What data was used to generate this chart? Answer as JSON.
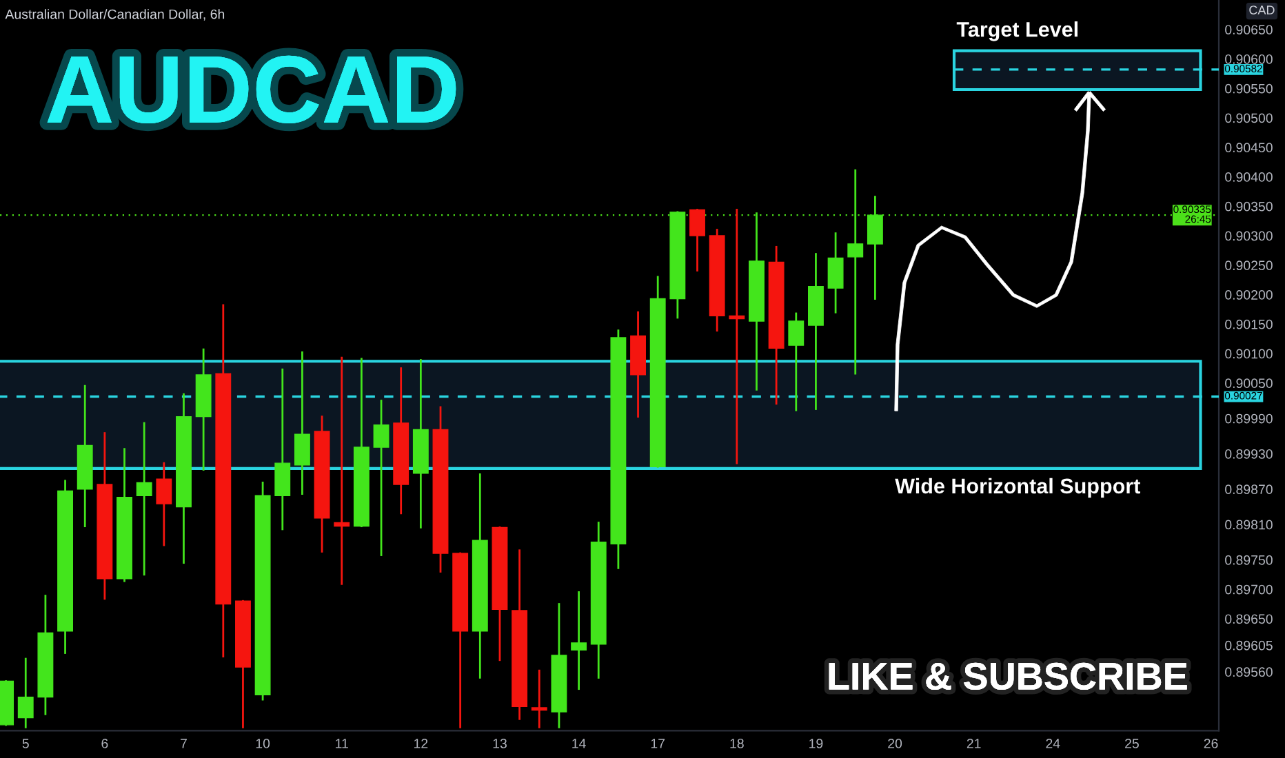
{
  "chart_data": {
    "type": "candlestick",
    "title": "AUDCAD",
    "subtitle": "Australian Dollar/Canadian Dollar, 6h",
    "ylabel": "CAD",
    "categories": [
      null,
      "5",
      null,
      null,
      null,
      "6",
      null,
      null,
      null,
      "7",
      null,
      null,
      null,
      "10",
      null,
      null,
      null,
      "11",
      null,
      null,
      null,
      "12",
      null,
      null,
      null,
      "13",
      null,
      null,
      null,
      "14",
      null,
      null,
      null,
      "17",
      null,
      null,
      null,
      "18",
      null,
      null,
      null,
      "19",
      null,
      null,
      null,
      "20",
      null,
      null,
      null,
      "21",
      null,
      null,
      null,
      "24",
      null,
      null,
      null,
      "25",
      null,
      null,
      null,
      "26"
    ],
    "ohlc": [
      [
        0.8947,
        0.89544,
        0.8947,
        0.89544
      ],
      [
        0.89482,
        0.89582,
        0.89466,
        0.89517
      ],
      [
        0.89517,
        0.89689,
        0.89488,
        0.89626
      ],
      [
        0.89629,
        0.89884,
        0.89592,
        0.89867
      ],
      [
        0.8987,
        0.90045,
        0.89807,
        0.89944
      ],
      [
        0.89878,
        0.89965,
        0.89684,
        0.89718
      ],
      [
        0.89718,
        0.89938,
        0.89714,
        0.89856
      ],
      [
        0.89859,
        0.89982,
        0.89725,
        0.89881
      ],
      [
        0.89887,
        0.89914,
        0.89775,
        0.89845
      ],
      [
        0.8984,
        0.90031,
        0.89745,
        0.89993
      ],
      [
        0.89993,
        0.90107,
        0.89903,
        0.90064
      ],
      [
        0.90066,
        0.90182,
        0.89586,
        0.89675
      ],
      [
        0.8968,
        0.8968,
        0.89466,
        0.89568
      ],
      [
        0.89521,
        0.89881,
        0.89513,
        0.89859
      ],
      [
        0.89859,
        0.90073,
        0.89802,
        0.89914
      ],
      [
        0.89911,
        0.90102,
        0.89862,
        0.89963
      ],
      [
        0.89968,
        0.89993,
        0.89764,
        0.89821
      ],
      [
        0.89813,
        0.90093,
        0.89709,
        0.89807
      ],
      [
        0.89807,
        0.90091,
        0.89807,
        0.89941
      ],
      [
        0.89941,
        0.9002,
        0.89758,
        0.89979
      ],
      [
        0.89982,
        0.90075,
        0.89829,
        0.89878
      ],
      [
        0.89897,
        0.90089,
        0.89805,
        0.89971
      ],
      [
        0.89971,
        0.90009,
        0.8973,
        0.89761
      ],
      [
        0.89761,
        0.89761,
        0.89466,
        0.89629
      ],
      [
        0.89629,
        0.89895,
        0.8955,
        0.89783
      ],
      [
        0.89805,
        0.89805,
        0.8958,
        0.89666
      ],
      [
        0.89664,
        0.89766,
        0.8948,
        0.89501
      ],
      [
        0.89499,
        0.89562,
        0.89466,
        0.89495
      ],
      [
        0.89492,
        0.89675,
        0.89466,
        0.89588
      ],
      [
        0.89597,
        0.89695,
        0.89531,
        0.89609
      ],
      [
        0.89607,
        0.89813,
        0.8955,
        0.8978
      ],
      [
        0.89777,
        0.90139,
        0.89736,
        0.90127
      ],
      [
        0.9013,
        0.9017,
        0.89993,
        0.90064
      ],
      [
        0.89908,
        0.9023,
        0.89908,
        0.90193
      ],
      [
        0.90193,
        0.9034,
        0.90161,
        0.9034
      ],
      [
        0.90344,
        0.90344,
        0.90241,
        0.903
      ],
      [
        0.903,
        0.9031,
        0.90139,
        0.90164
      ],
      [
        0.90164,
        0.90344,
        0.89914,
        0.90159
      ],
      [
        0.90155,
        0.90338,
        0.90039,
        0.90257
      ],
      [
        0.90255,
        0.90281,
        0.90015,
        0.90109
      ],
      [
        0.90114,
        0.90168,
        0.90004,
        0.90155
      ],
      [
        0.90148,
        0.90269,
        0.90006,
        0.90214
      ],
      [
        0.90211,
        0.90304,
        0.9017,
        0.90262
      ],
      [
        0.90264,
        0.90411,
        0.90066,
        0.90286
      ],
      [
        0.90286,
        0.90366,
        0.90193,
        0.90335
      ],
      null,
      null,
      null,
      null,
      null,
      null,
      null,
      null,
      null,
      null,
      null,
      null,
      null,
      null,
      null,
      null,
      null
    ],
    "colors": [
      "#43e51c",
      "#43e51c",
      "#43e51c",
      "#43e51c",
      "#43e51c",
      "#f5150f",
      "#43e51c",
      "#43e51c",
      "#f5150f",
      "#43e51c",
      "#43e51c",
      "#f5150f",
      "#f5150f",
      "#43e51c",
      "#43e51c",
      "#43e51c",
      "#f5150f",
      "#f5150f",
      "#43e51c",
      "#43e51c",
      "#f5150f",
      "#43e51c",
      "#f5150f",
      "#f5150f",
      "#43e51c",
      "#f5150f",
      "#f5150f",
      "#f5150f",
      "#43e51c",
      "#43e51c",
      "#43e51c",
      "#43e51c",
      "#f5150f",
      "#43e51c",
      "#43e51c",
      "#f5150f",
      "#f5150f",
      "#f5150f",
      "#43e51c",
      "#f5150f",
      "#43e51c",
      "#43e51c",
      "#43e51c",
      "#43e51c",
      "#43e51c",
      null,
      null,
      null,
      null,
      null,
      null,
      null,
      null,
      null,
      null,
      null,
      null,
      null,
      null,
      null,
      null,
      null
    ],
    "ylim": [
      0.8946,
      0.907
    ],
    "yticks": [
      {
        "value": 0.8956,
        "label": "0.89560"
      },
      {
        "value": 0.89605,
        "label": "0.89605"
      },
      {
        "value": 0.8965,
        "label": "0.89650"
      },
      {
        "value": 0.897,
        "label": "0.89700"
      },
      {
        "value": 0.8975,
        "label": "0.89750"
      },
      {
        "value": 0.8981,
        "label": "0.89810"
      },
      {
        "value": 0.8987,
        "label": "0.89870"
      },
      {
        "value": 0.8993,
        "label": "0.89930"
      },
      {
        "value": 0.8999,
        "label": "0.89990"
      },
      {
        "value": 0.9005,
        "label": "0.90050"
      },
      {
        "value": 0.901,
        "label": "0.90100"
      },
      {
        "value": 0.9015,
        "label": "0.90150"
      },
      {
        "value": 0.902,
        "label": "0.90200"
      },
      {
        "value": 0.9025,
        "label": "0.90250"
      },
      {
        "value": 0.903,
        "label": "0.90300"
      },
      {
        "value": 0.9035,
        "label": "0.90350"
      },
      {
        "value": 0.904,
        "label": "0.90400"
      },
      {
        "value": 0.9045,
        "label": "0.90450"
      },
      {
        "value": 0.905,
        "label": "0.90500"
      },
      {
        "value": 0.9055,
        "label": "0.90550"
      },
      {
        "value": 0.906,
        "label": "0.90600"
      },
      {
        "value": 0.9065,
        "label": "0.90650"
      }
    ],
    "bands": [
      {
        "axis": "y",
        "from": 0.89905,
        "to": 0.90087,
        "label": "Wide Horizontal Support",
        "color": "#2ad4e0"
      },
      {
        "axis": "y",
        "from": 0.90548,
        "to": 0.90614,
        "label": "Target Level",
        "color": "#2ad4e0"
      }
    ],
    "ref_lines": [
      {
        "axis": "y",
        "value": 0.90027,
        "label": "0.90027",
        "color": "#2ad4e0",
        "line_style": "dashed"
      },
      {
        "axis": "y",
        "value": 0.90582,
        "label": "0.90582",
        "color": "#2ad4e0",
        "line_style": "dashed"
      },
      {
        "axis": "y",
        "value": 0.90335,
        "label": "0.90335\n26:45",
        "color": "#4ce01a",
        "line_style": "dotted"
      }
    ],
    "annotations": [
      "LIKE & SUBSCRIBE"
    ],
    "grid": false
  }
}
